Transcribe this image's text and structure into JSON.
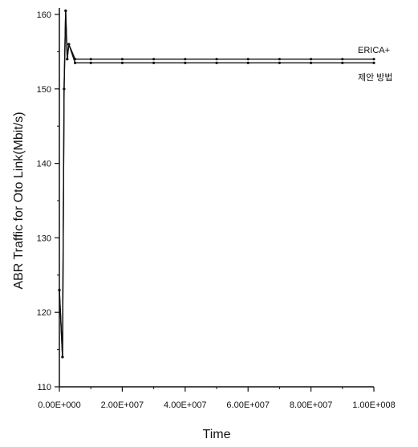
{
  "chart_data": {
    "type": "line",
    "title": "",
    "xlabel": "Time",
    "ylabel": "ABR Traffic for Oto Link(Mbit/s)",
    "xlim": [
      0,
      100000000
    ],
    "ylim": [
      110,
      160
    ],
    "x_ticks": [
      0,
      20000000,
      40000000,
      60000000,
      80000000,
      100000000
    ],
    "x_tick_labels": [
      "0.00E+000",
      "2.00E+007",
      "4.00E+007",
      "6.00E+007",
      "8.00E+007",
      "1.00E+008"
    ],
    "y_ticks": [
      110,
      120,
      130,
      140,
      150,
      160
    ],
    "y_tick_labels": [
      "110",
      "120",
      "130",
      "140",
      "150",
      "160"
    ],
    "grid": false,
    "legend_position": "right",
    "series": [
      {
        "name": "ERICA+",
        "color": "#111111",
        "points": [
          [
            0,
            123
          ],
          [
            1000000,
            114
          ],
          [
            1500000,
            150
          ],
          [
            2000000,
            160.5
          ],
          [
            2500000,
            154
          ],
          [
            3000000,
            156
          ],
          [
            5000000,
            154
          ],
          [
            10000000,
            154
          ],
          [
            20000000,
            154
          ],
          [
            30000000,
            154
          ],
          [
            40000000,
            154
          ],
          [
            50000000,
            154
          ],
          [
            60000000,
            154
          ],
          [
            70000000,
            154
          ],
          [
            80000000,
            154
          ],
          [
            90000000,
            154
          ],
          [
            100000000,
            154
          ]
        ]
      },
      {
        "name": "제안 방법",
        "color": "#111111",
        "points": [
          [
            0,
            123
          ],
          [
            1000000,
            114
          ],
          [
            1500000,
            150
          ],
          [
            2000000,
            160.5
          ],
          [
            2500000,
            154
          ],
          [
            3000000,
            156
          ],
          [
            5000000,
            153.5
          ],
          [
            10000000,
            153.5
          ],
          [
            20000000,
            153.5
          ],
          [
            30000000,
            153.5
          ],
          [
            40000000,
            153.5
          ],
          [
            50000000,
            153.5
          ],
          [
            60000000,
            153.5
          ],
          [
            70000000,
            153.5
          ],
          [
            80000000,
            153.5
          ],
          [
            90000000,
            153.5
          ],
          [
            100000000,
            153.5
          ]
        ]
      }
    ]
  }
}
